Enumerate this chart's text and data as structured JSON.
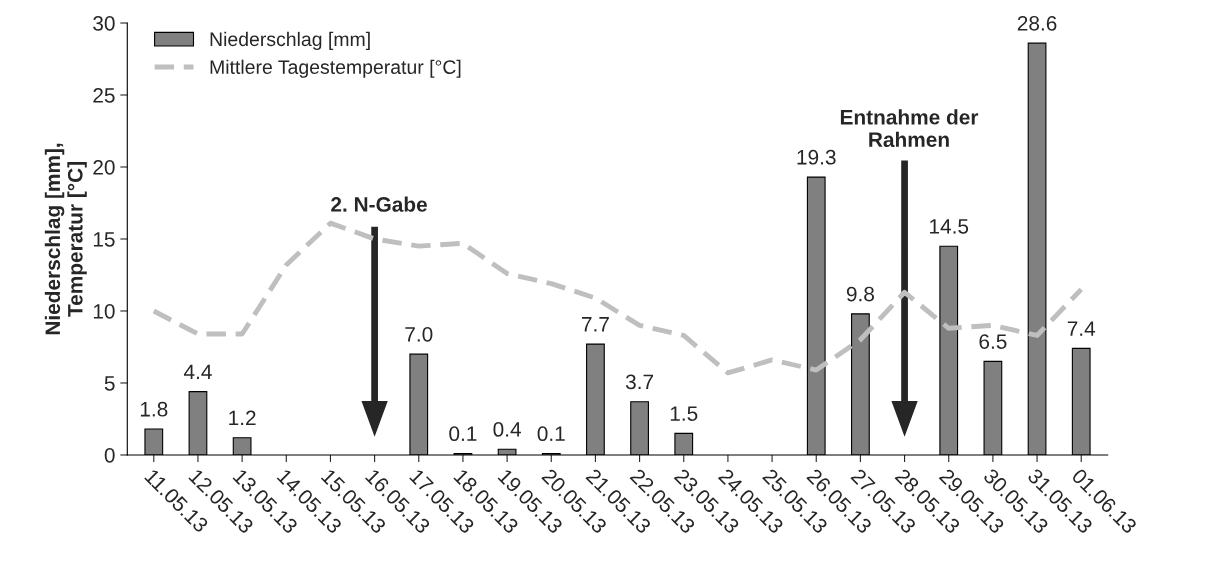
{
  "chart_data": {
    "type": "bar",
    "ylabel": "Niederschlag [mm],\nTemperatur [°C]",
    "categories": [
      "11.05.13",
      "12.05.13",
      "13.05.13",
      "14.05.13",
      "15.05.13",
      "16.05.13",
      "17.05.13",
      "18.05.13",
      "19.05.13",
      "20.05.13",
      "21.05.13",
      "22.05.13",
      "23.05.13",
      "24.05.13",
      "25.05.13",
      "26.05.13",
      "27.05.13",
      "28.05.13",
      "29.05.13",
      "30.05.13",
      "31.05.13",
      "01.06.13"
    ],
    "series": [
      {
        "name": "Niederschlag [mm]",
        "color": "#808080",
        "values": [
          1.8,
          4.4,
          1.2,
          null,
          null,
          null,
          7.0,
          0.1,
          0.4,
          0.1,
          7.7,
          3.7,
          1.5,
          null,
          null,
          19.3,
          9.8,
          null,
          14.5,
          6.5,
          28.6,
          7.4
        ],
        "value_labels": [
          "1.8",
          "4.4",
          "1.2",
          null,
          null,
          null,
          "7.0",
          "0.1",
          "0.4",
          "0.1",
          "7.7",
          "3.7",
          "1.5",
          null,
          null,
          "19.3",
          "9.8",
          null,
          "14.5",
          "6.5",
          "28.6",
          "7.4"
        ]
      },
      {
        "name": "Mittlere Tagestemperatur [°C]",
        "type": "line",
        "color": "#bfbfbf",
        "line_style": "dashed",
        "marker": "none",
        "values": [
          10.0,
          8.4,
          8.4,
          13.2,
          16.1,
          15.0,
          14.5,
          14.7,
          12.6,
          11.9,
          10.9,
          9.0,
          8.3,
          5.7,
          6.6,
          5.9,
          8.0,
          11.3,
          8.8,
          9.0,
          8.3,
          11.5
        ]
      }
    ],
    "annotations": [
      "2. N-Gabe",
      "Entnahme der\nRahmen"
    ],
    "ylim": [
      0,
      30
    ],
    "yticks": [
      0,
      5,
      10,
      15,
      20,
      25,
      30
    ],
    "grid": false,
    "legend": "top left"
  }
}
